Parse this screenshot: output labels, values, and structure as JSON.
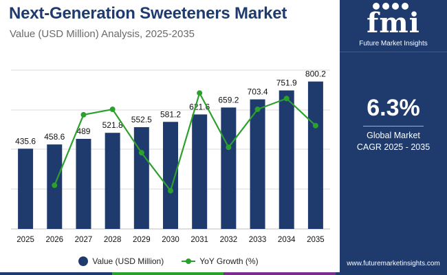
{
  "header": {
    "title": "Next-Generation Sweeteners  Market",
    "subtitle": "Value (USD Million) Analysis, 2025-2035"
  },
  "legend": {
    "value_label": "Value (USD Million)",
    "growth_label": "YoY Growth (%)"
  },
  "colors": {
    "bar": "#1f3b6e",
    "line": "#2ca02c",
    "gridline": "#d9d9d9",
    "panel": "#1f3b6e",
    "footer_stripes": [
      "#1f3b6e",
      "#2ca02c",
      "#7b2d8e",
      "#1f3b6e"
    ]
  },
  "side_panel": {
    "logo_text": "fmi",
    "logo_caption": "Future Market Insights",
    "cagr_value": "6.3%",
    "cagr_label_line1": "Global Market",
    "cagr_label_line2": "CAGR 2025 - 2035",
    "website": "www.futuremarketinsights.com"
  },
  "chart_data": {
    "type": "bar",
    "title": "Next-Generation Sweeteners  Market",
    "subtitle": "Value (USD Million) Analysis, 2025-2035",
    "categories": [
      "2025",
      "2026",
      "2027",
      "2028",
      "2029",
      "2030",
      "2031",
      "2032",
      "2033",
      "2034",
      "2035"
    ],
    "series": [
      {
        "name": "Value (USD Million)",
        "type": "bar",
        "values": [
          435.6,
          458.6,
          489,
          521.8,
          552.5,
          581.2,
          621.6,
          659.2,
          703.4,
          751.9,
          800.2
        ],
        "labels": [
          "435.6",
          "458.6",
          "489",
          "521.8",
          "552.5",
          "581.2",
          "621.6",
          "659.2",
          "703.4",
          "751.9",
          "800.2"
        ]
      },
      {
        "name": "YoY Growth (%)",
        "type": "line",
        "values": [
          null,
          5.3,
          6.6,
          6.7,
          5.9,
          5.2,
          7.0,
          6.0,
          6.7,
          6.9,
          6.4
        ]
      }
    ],
    "ylim": [
      0,
      800
    ],
    "y2lim": [
      4.8,
      7.6
    ],
    "grid": true,
    "legend_position": "bottom"
  }
}
